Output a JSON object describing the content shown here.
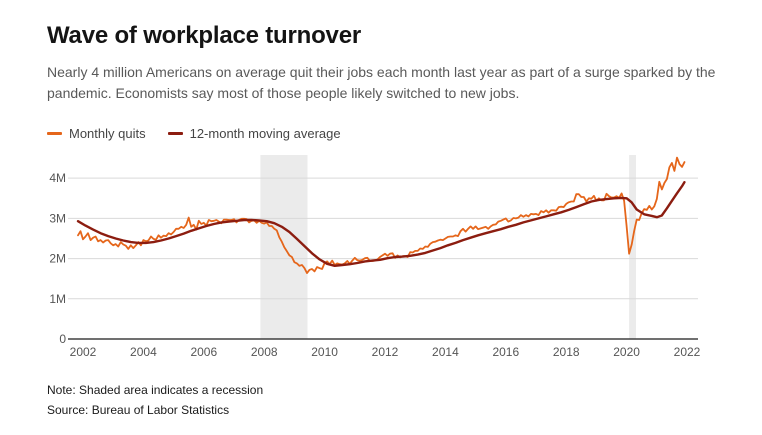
{
  "header": {
    "title": "Wave of workplace turnover",
    "subtitle": "Nearly 4 million Americans on average quit their jobs each month last year as part of a surge sparked by the pandemic. Economists say most of those people likely switched to new jobs."
  },
  "legend": [
    {
      "label": "Monthly quits",
      "color": "#E5661B"
    },
    {
      "label": "12-month moving average",
      "color": "#8C1D10"
    }
  ],
  "footer": {
    "note": "Note: Shaded area indicates a recession",
    "source": "Source: Bureau of Labor Statistics"
  },
  "colors": {
    "grid": "#d9d9d9",
    "axis": "#404040",
    "band": "#ebebeb",
    "tick_text": "#555555"
  },
  "chart_data": {
    "type": "line",
    "title": "Wave of workplace turnover",
    "xlabel": "",
    "ylabel": "",
    "xlim": [
      2001.67,
      2022.53
    ],
    "ylim": [
      0,
      4.7
    ],
    "x_ticks": [
      2002,
      2004,
      2006,
      2008,
      2010,
      2012,
      2014,
      2016,
      2018,
      2020,
      2022
    ],
    "y_ticks": [
      {
        "v": 0,
        "label": "0"
      },
      {
        "v": 1,
        "label": "1M"
      },
      {
        "v": 2,
        "label": "2M"
      },
      {
        "v": 3,
        "label": "3M"
      },
      {
        "v": 4,
        "label": "4M"
      }
    ],
    "grid": true,
    "legend_position": "top-left",
    "recessions": [
      {
        "start": 2008.04,
        "end": 2009.6
      },
      {
        "start": 2020.25,
        "end": 2020.48
      }
    ],
    "series": [
      {
        "name": "Monthly quits",
        "color": "#E5661B",
        "width": 1.8,
        "unit": "millions",
        "start": 2002.0,
        "step_months": 1,
        "values": [
          2.58,
          2.68,
          2.48,
          2.55,
          2.63,
          2.46,
          2.52,
          2.55,
          2.43,
          2.46,
          2.4,
          2.45,
          2.46,
          2.38,
          2.33,
          2.36,
          2.3,
          2.41,
          2.35,
          2.32,
          2.24,
          2.33,
          2.26,
          2.33,
          2.41,
          2.33,
          2.46,
          2.43,
          2.45,
          2.55,
          2.49,
          2.47,
          2.58,
          2.52,
          2.57,
          2.56,
          2.63,
          2.6,
          2.66,
          2.74,
          2.74,
          2.79,
          2.76,
          2.84,
          3.02,
          2.79,
          2.84,
          2.72,
          2.94,
          2.86,
          2.89,
          2.82,
          2.96,
          2.93,
          2.94,
          2.96,
          2.92,
          2.88,
          2.97,
          2.97,
          2.96,
          2.96,
          2.98,
          2.9,
          2.96,
          2.99,
          2.99,
          2.98,
          2.9,
          2.94,
          2.95,
          2.89,
          2.94,
          2.89,
          2.87,
          2.9,
          2.81,
          2.81,
          2.74,
          2.7,
          2.53,
          2.42,
          2.28,
          2.18,
          2.08,
          2.04,
          1.91,
          1.88,
          1.82,
          1.84,
          1.76,
          1.64,
          1.72,
          1.74,
          1.68,
          1.79,
          1.76,
          1.74,
          1.89,
          1.93,
          1.86,
          1.95,
          1.84,
          1.88,
          1.86,
          1.85,
          1.88,
          1.94,
          1.87,
          1.95,
          2.02,
          1.96,
          1.95,
          1.97,
          2.01,
          2.02,
          1.94,
          1.94,
          1.95,
          1.98,
          2.04,
          2.08,
          2.12,
          2.07,
          2.12,
          2.13,
          2.02,
          2.08,
          2.03,
          2.06,
          2.06,
          2.04,
          2.16,
          2.15,
          2.19,
          2.19,
          2.25,
          2.24,
          2.3,
          2.29,
          2.37,
          2.41,
          2.42,
          2.45,
          2.47,
          2.46,
          2.5,
          2.54,
          2.55,
          2.55,
          2.58,
          2.56,
          2.68,
          2.74,
          2.67,
          2.74,
          2.8,
          2.74,
          2.8,
          2.73,
          2.75,
          2.77,
          2.79,
          2.74,
          2.8,
          2.84,
          2.85,
          2.92,
          2.94,
          2.97,
          3.0,
          2.92,
          2.95,
          3.01,
          3.0,
          3.02,
          3.08,
          3.04,
          3.08,
          3.05,
          3.11,
          3.1,
          3.11,
          3.08,
          3.18,
          3.15,
          3.2,
          3.14,
          3.2,
          3.2,
          3.19,
          3.28,
          3.29,
          3.28,
          3.36,
          3.4,
          3.42,
          3.42,
          3.6,
          3.6,
          3.53,
          3.53,
          3.42,
          3.5,
          3.49,
          3.56,
          3.44,
          3.5,
          3.45,
          3.45,
          3.61,
          3.55,
          3.52,
          3.52,
          3.55,
          3.51,
          3.62,
          3.44,
          2.81,
          2.12,
          2.35,
          2.69,
          2.97,
          2.96,
          3.13,
          3.23,
          3.21,
          3.31,
          3.22,
          3.3,
          3.48,
          3.91,
          3.72,
          3.88,
          3.98,
          4.27,
          4.38,
          4.18,
          4.51,
          4.35,
          4.28,
          4.4
        ]
      },
      {
        "name": "12-month moving average",
        "color": "#8C1D10",
        "width": 2.4,
        "unit": "millions",
        "points": [
          [
            2002.0,
            2.93
          ],
          [
            2002.25,
            2.82
          ],
          [
            2002.5,
            2.72
          ],
          [
            2002.75,
            2.63
          ],
          [
            2003.0,
            2.56
          ],
          [
            2003.25,
            2.5
          ],
          [
            2003.5,
            2.45
          ],
          [
            2003.75,
            2.41
          ],
          [
            2004.0,
            2.39
          ],
          [
            2004.25,
            2.39
          ],
          [
            2004.5,
            2.41
          ],
          [
            2004.75,
            2.45
          ],
          [
            2005.0,
            2.5
          ],
          [
            2005.25,
            2.56
          ],
          [
            2005.5,
            2.62
          ],
          [
            2005.75,
            2.69
          ],
          [
            2006.0,
            2.75
          ],
          [
            2006.25,
            2.81
          ],
          [
            2006.5,
            2.86
          ],
          [
            2006.75,
            2.9
          ],
          [
            2007.0,
            2.92
          ],
          [
            2007.25,
            2.94
          ],
          [
            2007.5,
            2.96
          ],
          [
            2007.75,
            2.96
          ],
          [
            2008.0,
            2.95
          ],
          [
            2008.25,
            2.93
          ],
          [
            2008.5,
            2.88
          ],
          [
            2008.75,
            2.79
          ],
          [
            2009.0,
            2.66
          ],
          [
            2009.25,
            2.49
          ],
          [
            2009.5,
            2.31
          ],
          [
            2009.75,
            2.13
          ],
          [
            2010.0,
            1.98
          ],
          [
            2010.25,
            1.87
          ],
          [
            2010.5,
            1.82
          ],
          [
            2010.75,
            1.84
          ],
          [
            2011.0,
            1.86
          ],
          [
            2011.25,
            1.89
          ],
          [
            2011.5,
            1.93
          ],
          [
            2011.75,
            1.95
          ],
          [
            2012.0,
            1.97
          ],
          [
            2012.25,
            2.01
          ],
          [
            2012.5,
            2.04
          ],
          [
            2012.75,
            2.05
          ],
          [
            2013.0,
            2.07
          ],
          [
            2013.25,
            2.1
          ],
          [
            2013.5,
            2.14
          ],
          [
            2013.75,
            2.2
          ],
          [
            2014.0,
            2.26
          ],
          [
            2014.25,
            2.33
          ],
          [
            2014.5,
            2.39
          ],
          [
            2014.75,
            2.46
          ],
          [
            2015.0,
            2.52
          ],
          [
            2015.25,
            2.58
          ],
          [
            2015.5,
            2.63
          ],
          [
            2015.75,
            2.68
          ],
          [
            2016.0,
            2.73
          ],
          [
            2016.25,
            2.79
          ],
          [
            2016.5,
            2.84
          ],
          [
            2016.75,
            2.9
          ],
          [
            2017.0,
            2.95
          ],
          [
            2017.25,
            3.0
          ],
          [
            2017.5,
            3.05
          ],
          [
            2017.75,
            3.1
          ],
          [
            2018.0,
            3.15
          ],
          [
            2018.25,
            3.21
          ],
          [
            2018.5,
            3.28
          ],
          [
            2018.75,
            3.35
          ],
          [
            2019.0,
            3.42
          ],
          [
            2019.25,
            3.46
          ],
          [
            2019.5,
            3.48
          ],
          [
            2019.75,
            3.5
          ],
          [
            2020.0,
            3.51
          ],
          [
            2020.17,
            3.5
          ],
          [
            2020.33,
            3.4
          ],
          [
            2020.5,
            3.22
          ],
          [
            2020.75,
            3.1
          ],
          [
            2021.0,
            3.06
          ],
          [
            2021.17,
            3.03
          ],
          [
            2021.33,
            3.07
          ],
          [
            2021.5,
            3.25
          ],
          [
            2021.67,
            3.44
          ],
          [
            2021.83,
            3.62
          ],
          [
            2022.0,
            3.8
          ],
          [
            2022.08,
            3.9
          ]
        ]
      }
    ]
  }
}
